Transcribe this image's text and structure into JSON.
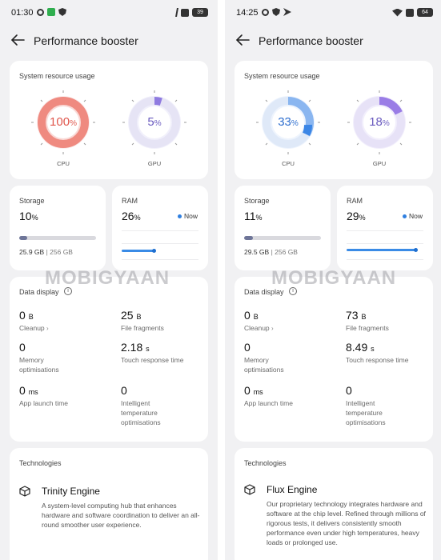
{
  "watermark": "MOBIGYAAN",
  "screens": [
    {
      "status_bar": {
        "time": "01:30",
        "battery": "39"
      },
      "header": {
        "title": "Performance booster"
      },
      "resource": {
        "title": "System resource usage",
        "cpu": {
          "value": "100",
          "unit": "%",
          "label": "CPU",
          "fraction": 1.0
        },
        "gpu": {
          "value": "5",
          "unit": "%",
          "label": "GPU",
          "fraction": 0.05
        }
      },
      "storage": {
        "label": "Storage",
        "value": "10",
        "unit": "%",
        "used": "25.9 GB",
        "separator": "|",
        "total": "256 GB",
        "fraction": 0.1
      },
      "ram": {
        "label": "RAM",
        "value": "26",
        "unit": "%",
        "now_label": "Now"
      },
      "data_display": {
        "title": "Data display",
        "cleanup": {
          "value": "0",
          "unit": "B",
          "label": "Cleanup"
        },
        "file_fragments": {
          "value": "25",
          "unit": "B",
          "label": "File fragments"
        },
        "memory": {
          "value": "0",
          "label": "Memory optimisations"
        },
        "touch": {
          "value": "2.18",
          "unit": "s",
          "label": "Touch response time"
        },
        "app_launch": {
          "value": "0",
          "unit": "ms",
          "label": "App launch time"
        },
        "temperature": {
          "value": "0",
          "label": "Intelligent temperature optimisations"
        }
      },
      "technologies": {
        "title": "Technologies",
        "engine_name": "Trinity Engine",
        "engine_desc": "A system-level computing hub that enhances hardware and software coordination to deliver an all-round smoother user experience."
      }
    },
    {
      "status_bar": {
        "time": "14:25",
        "battery": "64"
      },
      "header": {
        "title": "Performance booster"
      },
      "resource": {
        "title": "System resource usage",
        "cpu": {
          "value": "33",
          "unit": "%",
          "label": "CPU",
          "fraction": 0.33
        },
        "gpu": {
          "value": "18",
          "unit": "%",
          "label": "GPU",
          "fraction": 0.18
        }
      },
      "storage": {
        "label": "Storage",
        "value": "11",
        "unit": "%",
        "used": "29.5 GB",
        "separator": "|",
        "total": "256 GB",
        "fraction": 0.11
      },
      "ram": {
        "label": "RAM",
        "value": "29",
        "unit": "%",
        "now_label": "Now"
      },
      "data_display": {
        "title": "Data display",
        "cleanup": {
          "value": "0",
          "unit": "B",
          "label": "Cleanup"
        },
        "file_fragments": {
          "value": "73",
          "unit": "B",
          "label": "File fragments"
        },
        "memory": {
          "value": "0",
          "label": "Memory optimisations"
        },
        "touch": {
          "value": "8.49",
          "unit": "s",
          "label": "Touch response time"
        },
        "app_launch": {
          "value": "0",
          "unit": "ms",
          "label": "App launch time"
        },
        "temperature": {
          "value": "0",
          "label": "Intelligent temperature optimisations"
        }
      },
      "technologies": {
        "title": "Technologies",
        "engine_name": "Flux Engine",
        "engine_desc": "Our proprietary technology integrates hardware and software at the chip level. Refined through millions of rigorous tests, it delivers consistently smooth performance even under high temperatures, heavy loads or prolonged use."
      }
    }
  ],
  "colors": {
    "cpu_left": "#ef8a80",
    "gpu_left": "#8f7be0",
    "cpu_right": "#3b86e6",
    "gpu_right": "#9a7de6",
    "ram_line": "#3a8be6"
  }
}
